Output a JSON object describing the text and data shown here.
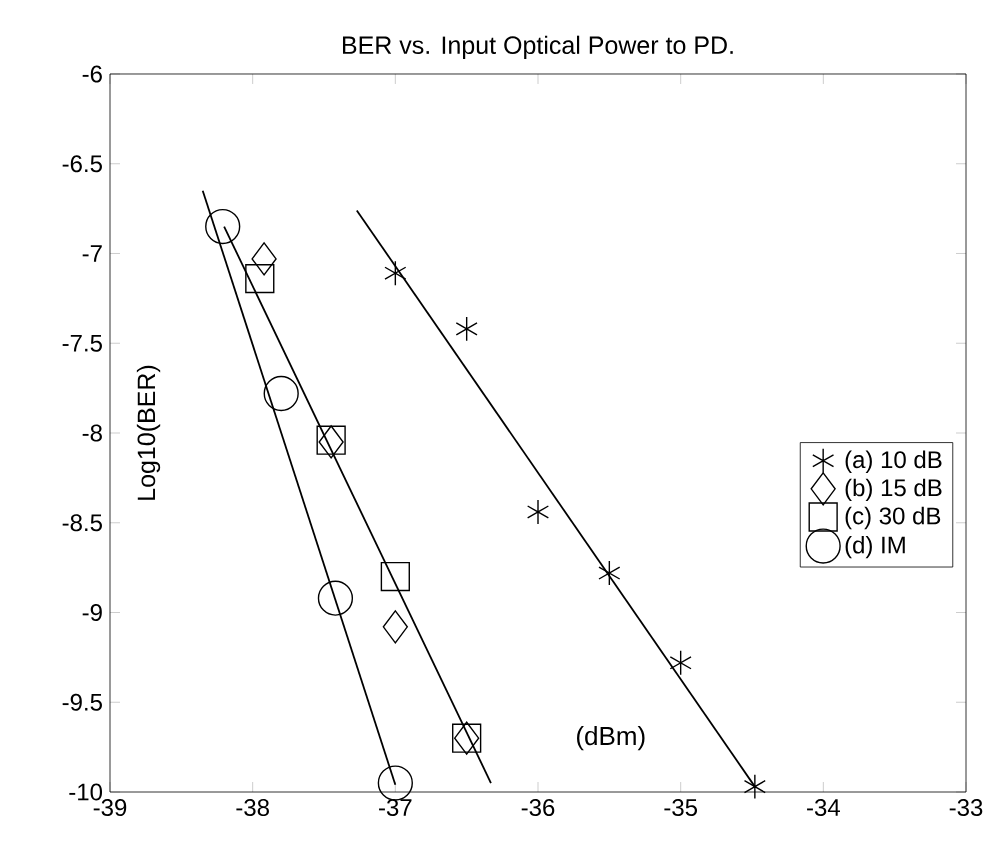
{
  "chart_data": {
    "type": "scatter",
    "title": "BER vs. Input Optical Power to PD.",
    "xlabel": "(dBm)",
    "ylabel": "Log10(BER)",
    "xlim": [
      -39,
      -33
    ],
    "xticks": [
      -39,
      -38,
      -37,
      -36,
      -35,
      -34,
      -33
    ],
    "ylim": [
      -10,
      -6
    ],
    "yticks": [
      -10,
      -9.5,
      -9,
      -8.5,
      -8,
      -7.5,
      -7,
      -6.5,
      -6
    ],
    "legend": "right",
    "grid": false,
    "series": [
      {
        "name": "(a) 10 dB",
        "color": "#000000",
        "marker": "cross",
        "x": [
          -37.0,
          -36.5,
          -36.0,
          -35.5,
          -35.0,
          -34.48
        ],
        "values": [
          -7.11,
          -7.42,
          -8.44,
          -8.78,
          -9.28,
          -9.97
        ]
      },
      {
        "name": "(b) 15 dB",
        "color": "#000000",
        "marker": "diamond",
        "x": [
          -37.92,
          -37.45,
          -37.0,
          -36.5
        ],
        "values": [
          -7.03,
          -8.05,
          -9.08,
          -9.7
        ]
      },
      {
        "name": "(c) 30 dB",
        "color": "#000000",
        "marker": "square",
        "x": [
          -37.95,
          -37.45,
          -37.0,
          -36.5
        ],
        "values": [
          -7.14,
          -8.04,
          -8.8,
          -9.7
        ]
      },
      {
        "name": "(d) IM",
        "color": "#000000",
        "marker": "circle",
        "x": [
          -38.21,
          -37.8,
          -37.42,
          -37.0
        ],
        "values": [
          -6.85,
          -7.78,
          -8.92,
          -9.95
        ]
      },
      {
        "type": "line",
        "color": "#000000",
        "marker": "none",
        "x": [
          -37.27,
          -34.48
        ],
        "values": [
          -6.76,
          -9.97
        ]
      },
      {
        "type": "line",
        "color": "#000000",
        "marker": "none",
        "x": [
          -38.2,
          -36.33
        ],
        "values": [
          -6.85,
          -9.95
        ]
      },
      {
        "type": "line",
        "color": "#000000",
        "marker": "none",
        "x": [
          -38.35,
          -37.0
        ],
        "values": [
          -6.65,
          -9.96
        ]
      }
    ]
  }
}
